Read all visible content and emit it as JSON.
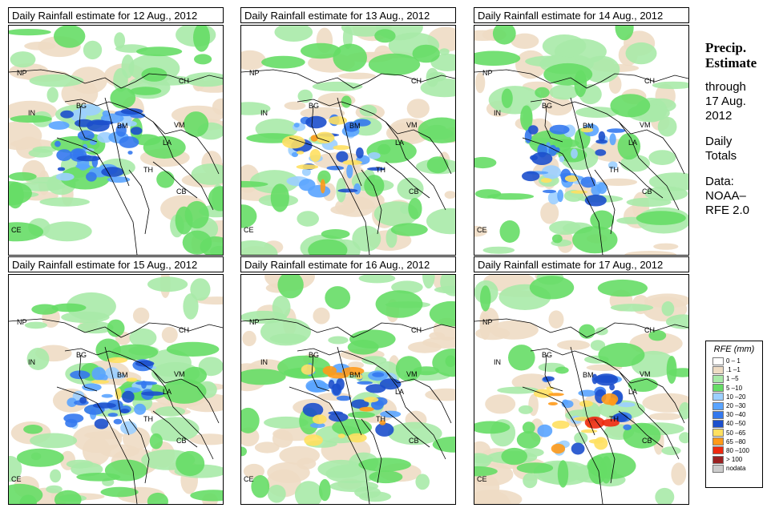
{
  "panels": [
    {
      "title": "Daily Rainfall estimate for  12 Aug., 2012",
      "intensity": 0.55
    },
    {
      "title": "Daily Rainfall estimate for  13 Aug., 2012",
      "intensity": 0.75
    },
    {
      "title": "Daily Rainfall estimate for  14 Aug., 2012",
      "intensity": 0.65
    },
    {
      "title": "Daily Rainfall estimate for  15 Aug., 2012",
      "intensity": 0.6
    },
    {
      "title": "Daily Rainfall estimate for  16 Aug., 2012",
      "intensity": 0.8
    },
    {
      "title": "Daily Rainfall estimate for  17 Aug., 2012",
      "intensity": 0.9
    }
  ],
  "map_labels": {
    "np": "NP",
    "ch": "CH",
    "in": "IN",
    "bg": "BG",
    "bm": "BM",
    "vm": "VM",
    "la": "LA",
    "th": "TH",
    "cb": "CB",
    "ce": "CE"
  },
  "sidebar": {
    "line1": "Precip.",
    "line2": "Estimate",
    "line3": "through",
    "line4": "17 Aug.",
    "line5": "2012",
    "line6": "Daily",
    "line7": "Totals",
    "line8": "Data:",
    "line9": "NOAA–",
    "line10": "RFE 2.0"
  },
  "legend": {
    "title": "RFE (mm)",
    "items": [
      {
        "label": "0 – 1",
        "color": "#ffffff"
      },
      {
        "label": ".1 –1",
        "color": "#eedcc4"
      },
      {
        "label": "1 –5",
        "color": "#a8eaa8"
      },
      {
        "label": "5 –10",
        "color": "#66dd66"
      },
      {
        "label": "10 –20",
        "color": "#9ccfff"
      },
      {
        "label": "20 –30",
        "color": "#5aa4ff"
      },
      {
        "label": "30 –40",
        "color": "#3478ee"
      },
      {
        "label": "40 –50",
        "color": "#1c4fcc"
      },
      {
        "label": "50 –65",
        "color": "#ffe060"
      },
      {
        "label": "65 –80",
        "color": "#ff9a1a"
      },
      {
        "label": "80 –100",
        "color": "#ee2a10"
      },
      {
        "label": "> 100",
        "color": "#9a2222"
      },
      {
        "label": "nodata",
        "color": "#cccccc"
      }
    ]
  }
}
